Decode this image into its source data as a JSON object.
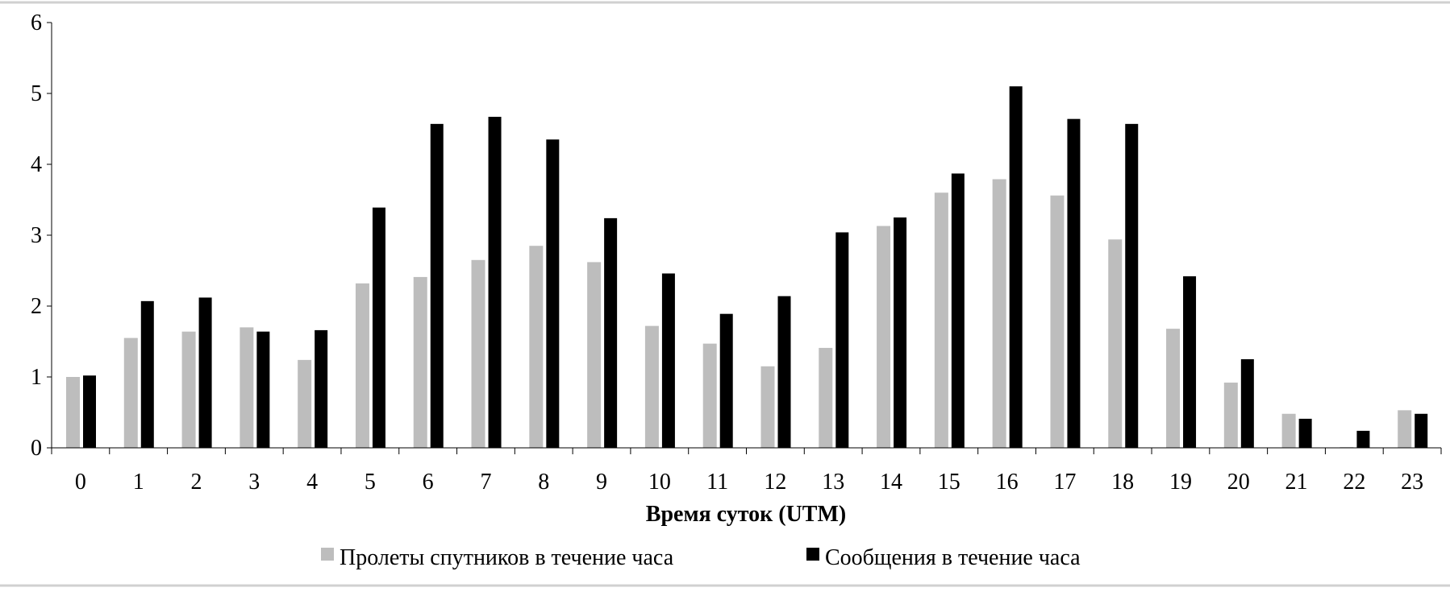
{
  "chart_data": {
    "type": "bar",
    "title": "",
    "xlabel": "Время суток (UTM)",
    "ylabel": "",
    "ylim": [
      0,
      6
    ],
    "yticks": [
      "0",
      "1",
      "2",
      "3",
      "4",
      "5",
      "6"
    ],
    "categories": [
      "0",
      "1",
      "2",
      "3",
      "4",
      "5",
      "6",
      "7",
      "8",
      "9",
      "10",
      "11",
      "12",
      "13",
      "14",
      "15",
      "16",
      "17",
      "18",
      "19",
      "20",
      "21",
      "22",
      "23"
    ],
    "legend_position": "bottom",
    "grid": false,
    "series": [
      {
        "name": "Пролеты спутников в течение часа",
        "color": "#bdbdbd",
        "values": [
          1.0,
          1.55,
          1.64,
          1.7,
          1.24,
          2.32,
          2.41,
          2.65,
          2.85,
          2.62,
          1.72,
          1.47,
          1.15,
          1.41,
          3.13,
          3.6,
          3.79,
          3.56,
          2.94,
          1.68,
          0.92,
          0.48,
          0.01,
          0.53
        ]
      },
      {
        "name": "Сообщения в течение часа",
        "color": "#000000",
        "values": [
          1.02,
          2.07,
          2.12,
          1.64,
          1.66,
          3.39,
          4.57,
          4.67,
          4.35,
          3.24,
          2.46,
          1.89,
          2.14,
          3.04,
          3.25,
          3.87,
          5.1,
          4.64,
          4.57,
          2.42,
          1.25,
          0.41,
          0.24,
          0.48
        ]
      }
    ]
  }
}
